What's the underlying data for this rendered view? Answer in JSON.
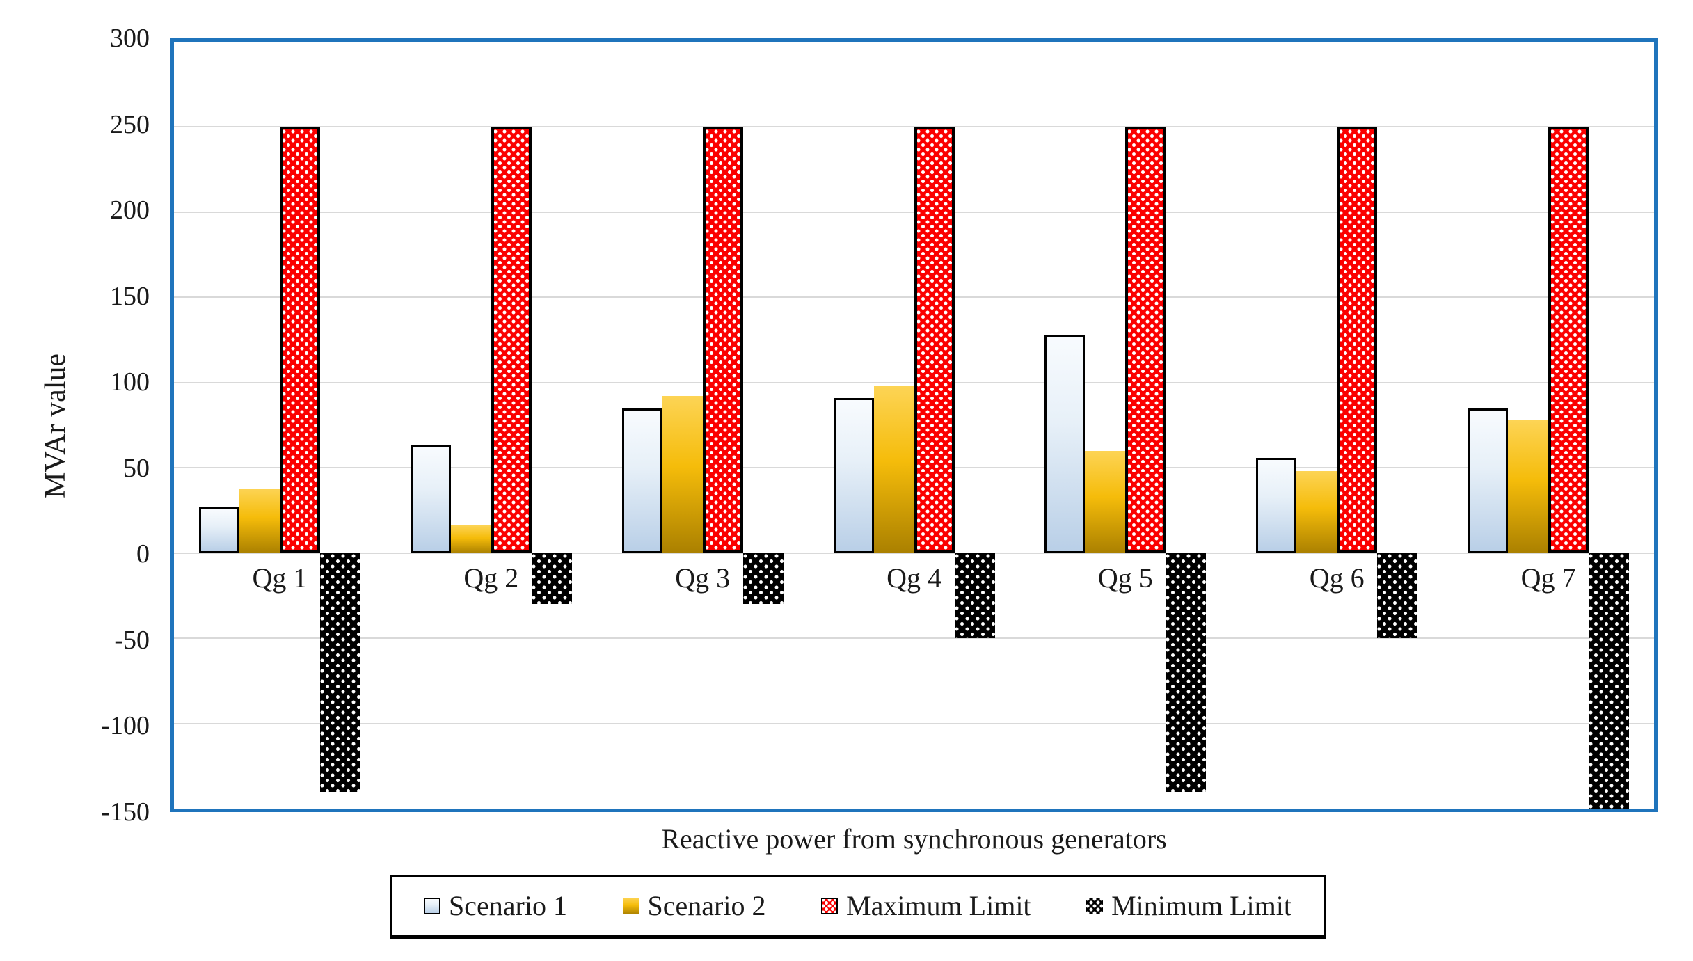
{
  "chart_data": {
    "type": "bar",
    "title": "",
    "xlabel": "Reactive power from synchronous generators",
    "ylabel": "MVAr value",
    "ylim": [
      -150,
      300
    ],
    "ytick_interval": 50,
    "yticks": [
      300,
      250,
      200,
      150,
      100,
      50,
      0,
      -50,
      -100,
      -150
    ],
    "grid": true,
    "legend_position": "bottom",
    "categories": [
      "Qg 1",
      "Qg 2",
      "Qg 3",
      "Qg 4",
      "Qg 5",
      "Qg 6",
      "Qg 7"
    ],
    "series": [
      {
        "name": "Scenario 1",
        "style": "scenario1",
        "values": [
          27,
          63,
          85,
          91,
          128,
          56,
          85
        ]
      },
      {
        "name": "Scenario 2",
        "style": "scenario2",
        "values": [
          38,
          16,
          92,
          98,
          60,
          48,
          78
        ]
      },
      {
        "name": "Maximum Limit",
        "style": "max_limit",
        "values": [
          250,
          250,
          250,
          250,
          250,
          250,
          250
        ]
      },
      {
        "name": "Minimum Limit",
        "style": "min_limit",
        "values": [
          -140,
          -30,
          -30,
          -50,
          -140,
          -50,
          -150
        ]
      }
    ]
  },
  "colors": {
    "plot_border": "#1F74BC",
    "gridline": "#D9D9D9",
    "scenario1_fill_top": "#F8FBFE",
    "scenario1_fill_bottom": "#B9CFE7",
    "scenario2_fill_top": "#FDD455",
    "scenario2_fill_bottom": "#AA8000",
    "max_limit_fill": "#FB0000",
    "min_limit_fill": "#000000",
    "pattern_dot": "#FFFFFF",
    "bar_outline": "#000000",
    "text": "#1A1A1A"
  }
}
